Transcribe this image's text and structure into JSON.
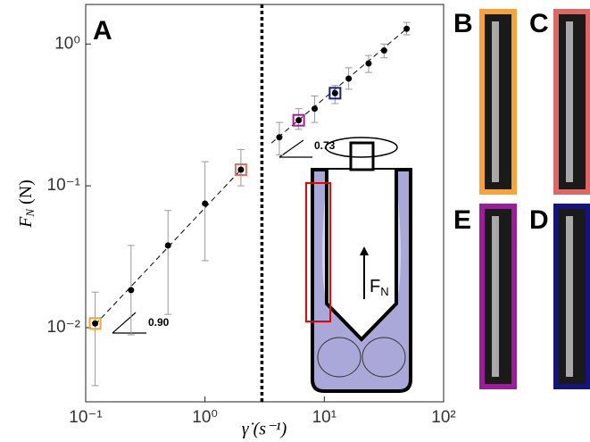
{
  "chart_data": {
    "type": "scatter",
    "panel_label": "A",
    "xlabel": "γ̇ (s⁻¹)",
    "ylabel": [
      "F",
      "N",
      " (N)"
    ],
    "log_x": true,
    "log_y": true,
    "xlim": [
      0.1,
      100
    ],
    "ylim": [
      0.003,
      1.9
    ],
    "xticks": [
      {
        "value": 0.1,
        "label": "10⁻¹"
      },
      {
        "value": 1,
        "label": "10⁰"
      },
      {
        "value": 10,
        "label": "10¹"
      },
      {
        "value": 100,
        "label": "10²"
      }
    ],
    "yticks": [
      {
        "value": 0.01,
        "label": "10⁻²"
      },
      {
        "value": 0.1,
        "label": "10⁻¹"
      },
      {
        "value": 1,
        "label": "10⁰"
      }
    ],
    "color": "#000000",
    "x": [
      0.12,
      0.24,
      0.49,
      1.0,
      2.0,
      4.2,
      6.1,
      8.3,
      12.3,
      16,
      23.5,
      31.7,
      49
    ],
    "values": [
      0.0107,
      0.0184,
      0.038,
      0.075,
      0.13,
      0.22,
      0.29,
      0.35,
      0.45,
      0.57,
      0.73,
      0.9,
      1.28
    ],
    "lower": [
      0.0039,
      0.0089,
      0.0124,
      0.0297,
      0.1,
      0.165,
      0.25,
      0.28,
      0.38,
      0.48,
      0.63,
      0.8,
      1.16
    ],
    "upper": [
      0.0178,
      0.038,
      0.067,
      0.148,
      0.18,
      0.28,
      0.35,
      0.43,
      0.51,
      0.68,
      0.83,
      1.0,
      1.42
    ],
    "highlights": [
      {
        "index": 0,
        "color": "#f5a33a"
      },
      {
        "index": 4,
        "color": "#e07060"
      },
      {
        "index": 6,
        "color": "#a020a0"
      },
      {
        "index": 8,
        "color": "#1a1a90"
      }
    ],
    "fits": [
      {
        "x": [
          0.12,
          2.0
        ],
        "y": [
          0.0105,
          0.13
        ],
        "slope_label": "0.90"
      },
      {
        "x": [
          3.6,
          50
        ],
        "y": [
          0.2,
          1.3
        ],
        "slope_label": "0.73"
      }
    ],
    "vline": 3,
    "diagram_label": [
      "F",
      "N"
    ],
    "panels": [
      {
        "label": "B",
        "color": "#f5a33a"
      },
      {
        "label": "C",
        "color": "#dd6666"
      },
      {
        "label": "E",
        "color": "#9a1e9a"
      },
      {
        "label": "D",
        "color": "#14147a"
      }
    ]
  }
}
